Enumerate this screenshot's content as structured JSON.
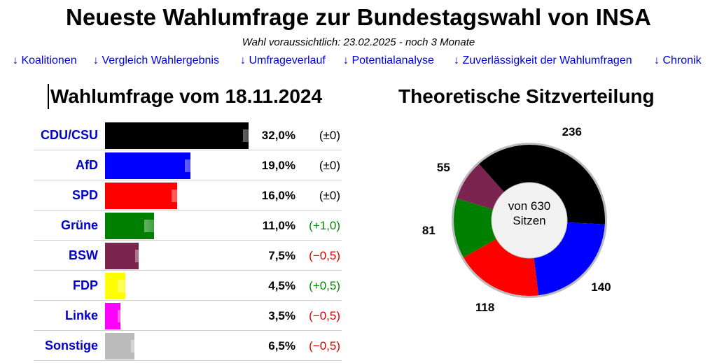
{
  "header": {
    "title": "Neueste Wahlumfrage zur Bundestagswahl von INSA",
    "subtitle": "Wahl voraussichtlich: 23.02.2025 - noch 3 Monate"
  },
  "nav": {
    "links": [
      "↓ Koalitionen",
      "↓ Vergleich Wahlergebnis",
      "↓ Umfrageverlauf",
      "↓ Potentialanalyse",
      "↓ Zuverlässigkeit der Wahlumfragen",
      "↓ Chronik"
    ]
  },
  "poll": {
    "title": "Wahlumfrage vom 18.11.2024",
    "rows": [
      {
        "party": "CDU/CSU",
        "value": 32.0,
        "prev": 32.0,
        "pct": "32,0%",
        "change": "(±0)",
        "trend": "neutral",
        "color": "#000000"
      },
      {
        "party": "AfD",
        "value": 19.0,
        "prev": 19.0,
        "pct": "19,0%",
        "change": "(±0)",
        "trend": "neutral",
        "color": "#0000ff"
      },
      {
        "party": "SPD",
        "value": 16.0,
        "prev": 16.0,
        "pct": "16,0%",
        "change": "(±0)",
        "trend": "neutral",
        "color": "#ff0000"
      },
      {
        "party": "Grüne",
        "value": 11.0,
        "prev": 10.0,
        "pct": "11,0%",
        "change": "(+1,0)",
        "trend": "up",
        "color": "#008000"
      },
      {
        "party": "BSW",
        "value": 7.5,
        "prev": 8.0,
        "pct": "7,5%",
        "change": "(−0,5)",
        "trend": "down",
        "color": "#7b2450"
      },
      {
        "party": "FDP",
        "value": 4.5,
        "prev": 4.0,
        "pct": "4,5%",
        "change": "(+0,5)",
        "trend": "up",
        "color": "#ffff00"
      },
      {
        "party": "Linke",
        "value": 3.5,
        "prev": 4.0,
        "pct": "3,5%",
        "change": "(−0,5)",
        "trend": "down",
        "color": "#ff00ff"
      },
      {
        "party": "Sonstige",
        "value": 6.5,
        "prev": 7.0,
        "pct": "6,5%",
        "change": "(−0,5)",
        "trend": "down",
        "color": "#bbbbbb"
      }
    ]
  },
  "seats": {
    "title": "Theoretische Sitzverteilung",
    "center": [
      "von 630",
      "Sitzen"
    ]
  },
  "chart_data": [
    {
      "type": "bar",
      "title": "Wahlumfrage vom 18.11.2024",
      "categories": [
        "CDU/CSU",
        "AfD",
        "SPD",
        "Grüne",
        "BSW",
        "FDP",
        "Linke",
        "Sonstige"
      ],
      "values": [
        32.0,
        19.0,
        16.0,
        11.0,
        7.5,
        4.5,
        3.5,
        6.5
      ],
      "previous_values": [
        32.0,
        19.0,
        16.0,
        10.0,
        8.0,
        4.0,
        4.0,
        7.0
      ],
      "changes": [
        0,
        0,
        0,
        1.0,
        -0.5,
        0.5,
        -0.5,
        -0.5
      ],
      "colors": [
        "#000000",
        "#0000ff",
        "#ff0000",
        "#008000",
        "#7b2450",
        "#ffff00",
        "#ff00ff",
        "#bbbbbb"
      ],
      "orientation": "horizontal"
    },
    {
      "type": "pie",
      "title": "Theoretische Sitzverteilung",
      "donut": true,
      "total": 630,
      "categories": [
        "CDU/CSU",
        "AfD",
        "SPD",
        "Grüne",
        "BSW"
      ],
      "values": [
        236,
        140,
        118,
        81,
        55
      ],
      "colors": [
        "#000000",
        "#0000ff",
        "#ff0000",
        "#008000",
        "#7b2450"
      ]
    }
  ]
}
